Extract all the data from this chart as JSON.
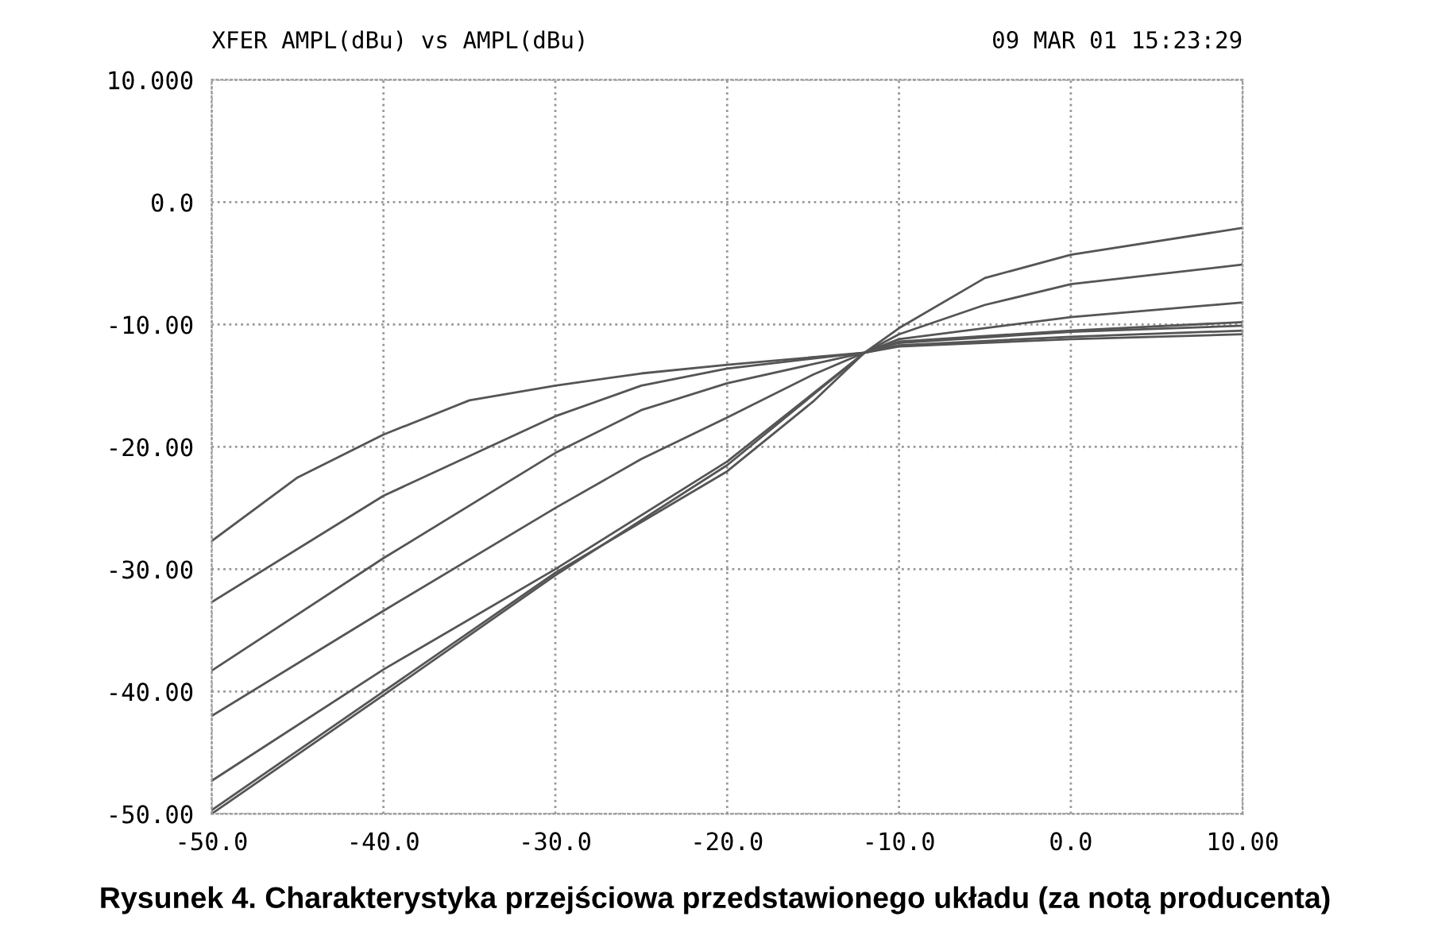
{
  "chart_data": {
    "type": "line",
    "title": "XFER AMPL(dBu) vs AMPL(dBu)",
    "annotations": [
      "09 MAR 01 15:23:29",
      "Rysunek 4. Charakterystyka przejściowa przedstawionego układu (za notą producenta)"
    ],
    "series": [
      {
        "color": "#555555",
        "x": [
          -50,
          -45,
          -40,
          -35,
          -30,
          -25,
          -20,
          -12,
          -10,
          0,
          10
        ],
        "values": [
          -27.7,
          -22.5,
          -19,
          -16.2,
          -15,
          -14,
          -13.3,
          -12.3,
          -11.8,
          -11.2,
          -10.8
        ]
      },
      {
        "color": "#555555",
        "x": [
          -50,
          -40,
          -30,
          -25,
          -20,
          -12,
          -10,
          0,
          10
        ],
        "values": [
          -32.7,
          -24,
          -17.5,
          -15,
          -13.6,
          -12.3,
          -11.7,
          -11,
          -10.5
        ]
      },
      {
        "color": "#555555",
        "x": [
          -50,
          -40,
          -30,
          -25,
          -20,
          -12,
          -10,
          0,
          10
        ],
        "values": [
          -38.3,
          -29.1,
          -20.5,
          -17,
          -14.8,
          -12.3,
          -11.5,
          -10.6,
          -10.1
        ]
      },
      {
        "color": "#555555",
        "x": [
          -50,
          -40,
          -30,
          -25,
          -20,
          -15,
          -12,
          -10,
          0,
          10
        ],
        "values": [
          -42,
          -33.4,
          -25,
          -21,
          -17.6,
          -14.1,
          -12.3,
          -11.2,
          -9.4,
          -8.2
        ]
      },
      {
        "color": "#555555",
        "x": [
          -50,
          -40,
          -30,
          -20,
          -12,
          -10,
          -5,
          0,
          10
        ],
        "values": [
          -47.3,
          -38.2,
          -30,
          -21.2,
          -12.3,
          -10.8,
          -8.4,
          -6.7,
          -5.1
        ]
      },
      {
        "color": "#555555",
        "x": [
          -50,
          -40,
          -30,
          -20,
          -15,
          -12,
          -10,
          -5,
          0,
          10
        ],
        "values": [
          -49.7,
          -40,
          -30.3,
          -22,
          -16.3,
          -12.3,
          -10.3,
          -6.2,
          -4.3,
          -2.1
        ]
      },
      {
        "color": "#555555",
        "x": [
          -50,
          -40,
          -30,
          -20,
          -12,
          -10,
          0,
          10
        ],
        "values": [
          -50,
          -40.3,
          -30.5,
          -21.5,
          -12.3,
          -11.4,
          -10.5,
          -9.8
        ]
      }
    ],
    "xlim": [
      -50,
      10
    ],
    "ylim": [
      -50,
      10
    ],
    "xticks": [
      {
        "value": -50,
        "label": "-50.0"
      },
      {
        "value": -40,
        "label": "-40.0"
      },
      {
        "value": -30,
        "label": "-30.0"
      },
      {
        "value": -20,
        "label": "-20.0"
      },
      {
        "value": -10,
        "label": "-10.0"
      },
      {
        "value": 0,
        "label": "0.0"
      },
      {
        "value": 10,
        "label": "10.00"
      }
    ],
    "yticks": [
      {
        "value": -50,
        "label": "-50.00"
      },
      {
        "value": -40,
        "label": "-40.00"
      },
      {
        "value": -30,
        "label": "-30.00"
      },
      {
        "value": -20,
        "label": "-20.00"
      },
      {
        "value": -10,
        "label": "-10.00"
      },
      {
        "value": 0,
        "label": "0.0"
      },
      {
        "value": 10,
        "label": "10.000"
      }
    ],
    "grid": true,
    "line_style": "solid"
  }
}
